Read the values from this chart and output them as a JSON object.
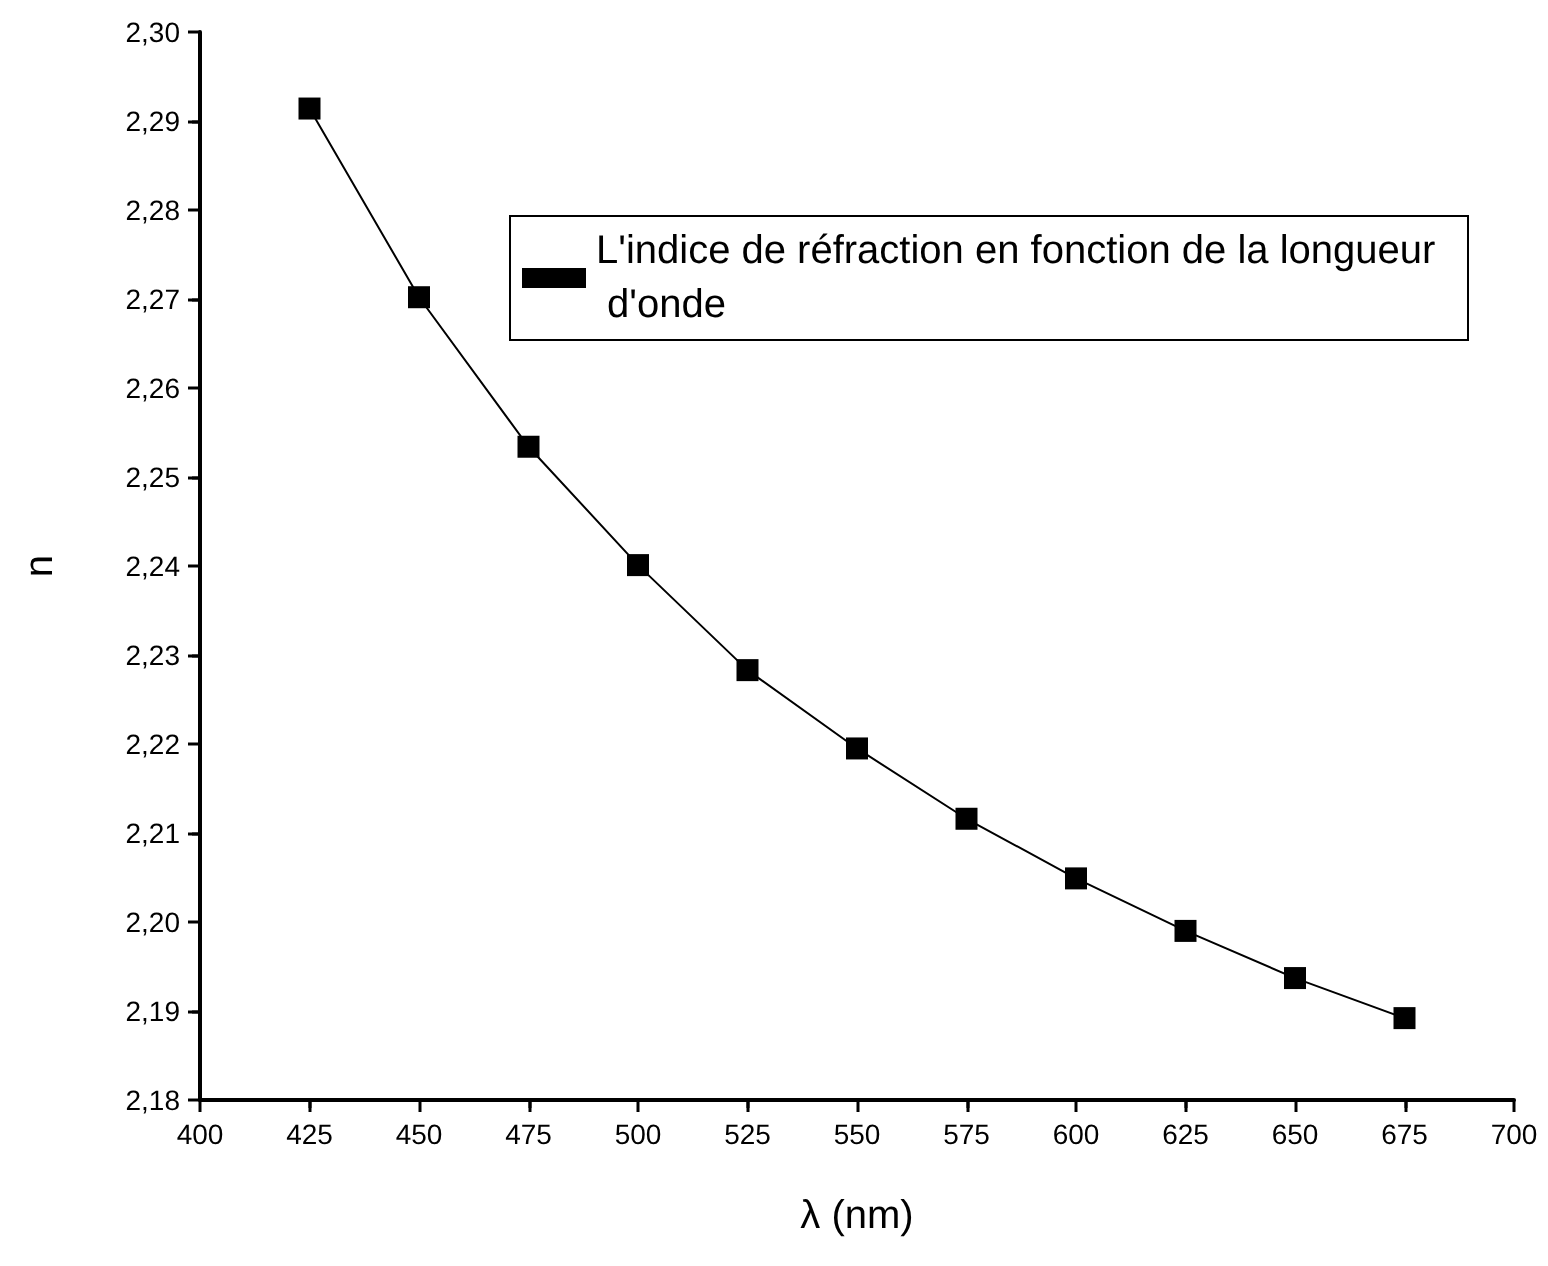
{
  "chart_data": {
    "type": "line",
    "xlabel": "λ (nm)",
    "ylabel": "n",
    "x": [
      425,
      450,
      475,
      500,
      525,
      550,
      575,
      600,
      625,
      650,
      675
    ],
    "series": [
      {
        "name": "L'indice de réfraction en fonction de la longueur d'onde",
        "color": "#000000",
        "values": [
          2.2914,
          2.2702,
          2.2534,
          2.2401,
          2.2283,
          2.2195,
          2.2116,
          2.2049,
          2.199,
          2.1937,
          2.1892
        ]
      }
    ],
    "xlim": [
      400,
      700
    ],
    "xticks": [
      400,
      425,
      450,
      475,
      500,
      525,
      550,
      575,
      600,
      625,
      650,
      675,
      700
    ],
    "ylim": [
      2.18,
      2.3
    ],
    "yticks": [
      {
        "value": 2.18,
        "label": "2,18"
      },
      {
        "value": 2.19,
        "label": "2,19"
      },
      {
        "value": 2.2,
        "label": "2,20"
      },
      {
        "value": 2.21,
        "label": "2,21"
      },
      {
        "value": 2.22,
        "label": "2,22"
      },
      {
        "value": 2.23,
        "label": "2,23"
      },
      {
        "value": 2.24,
        "label": "2,24"
      },
      {
        "value": 2.25,
        "label": "2,25"
      },
      {
        "value": 2.26,
        "label": "2,26"
      },
      {
        "value": 2.27,
        "label": "2,27"
      },
      {
        "value": 2.28,
        "label": "2,28"
      },
      {
        "value": 2.29,
        "label": "2,29"
      },
      {
        "value": 2.3,
        "label": "2,30"
      }
    ],
    "marker": "square",
    "line_style": "solid",
    "legend": "top right",
    "grid": false
  }
}
